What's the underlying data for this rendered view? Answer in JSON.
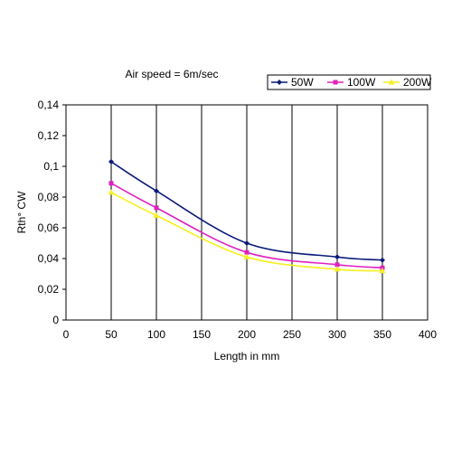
{
  "chart_data": {
    "type": "line",
    "title": "Air speed = 6m/sec",
    "xlabel": "Length in mm",
    "ylabel": "Rth° CW",
    "xlim": [
      0,
      400
    ],
    "ylim": [
      0,
      0.14
    ],
    "x_ticks": [
      0,
      50,
      100,
      150,
      200,
      250,
      300,
      350,
      400
    ],
    "x_tick_labels": [
      "0",
      "50",
      "100",
      "150",
      "200",
      "250",
      "300",
      "350",
      "400"
    ],
    "y_ticks": [
      0,
      0.02,
      0.04,
      0.06,
      0.08,
      0.1,
      0.12,
      0.14
    ],
    "y_tick_labels": [
      "0",
      "0,02",
      "0,04",
      "0,06",
      "0,08",
      "0,1",
      "0,12",
      "0,14"
    ],
    "grid": "vertical",
    "legend_position": "top-right",
    "x": [
      50,
      100,
      200,
      300,
      350
    ],
    "series": [
      {
        "name": "50W",
        "color": "#0a1a7a",
        "marker": "diamond",
        "values": [
          0.103,
          0.084,
          0.05,
          0.041,
          0.039
        ]
      },
      {
        "name": "100W",
        "color": "#e020c0",
        "marker": "square",
        "values": [
          0.089,
          0.073,
          0.044,
          0.036,
          0.034
        ]
      },
      {
        "name": "200W",
        "color": "#f5f020",
        "marker": "triangle",
        "values": [
          0.083,
          0.068,
          0.041,
          0.033,
          0.032
        ]
      }
    ]
  }
}
